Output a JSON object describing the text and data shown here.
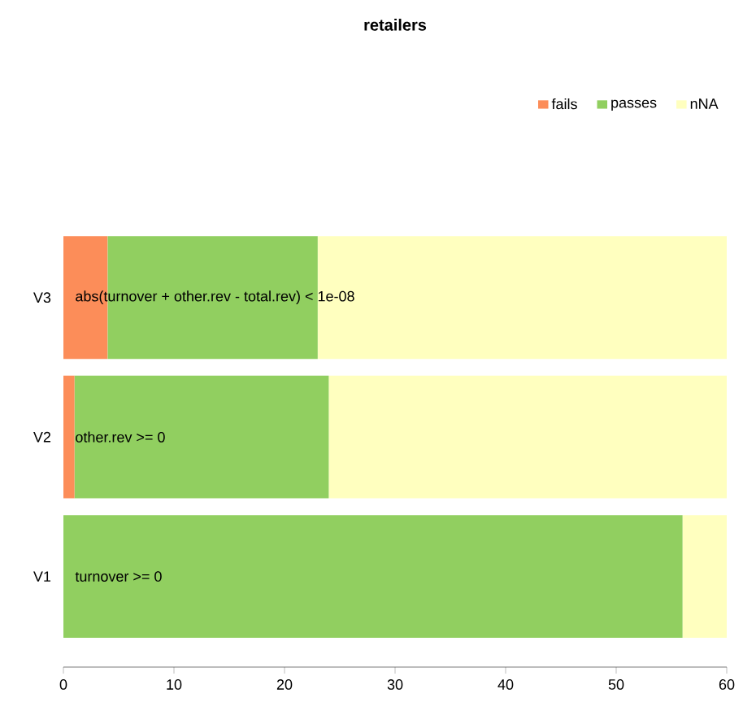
{
  "chart_data": {
    "type": "bar",
    "orientation": "horizontal",
    "stacked": true,
    "title": "retailers",
    "categories": [
      "V3",
      "V2",
      "V1"
    ],
    "series": [
      {
        "name": "fails",
        "color": "#fc8d59",
        "values": [
          4,
          1,
          0
        ]
      },
      {
        "name": "passes",
        "color": "#91cf60",
        "values": [
          19,
          23,
          56
        ]
      },
      {
        "name": "nNA",
        "color": "#ffffbf",
        "values": [
          37,
          36,
          4
        ]
      }
    ],
    "xlim": [
      0,
      60
    ],
    "xticks": [
      0,
      10,
      20,
      30,
      40,
      50,
      60
    ],
    "legend": "top right",
    "grid": false,
    "annotations": [
      "abs(turnover + other.rev - total.rev) < 1e-08",
      "other.rev >= 0",
      "turnover >= 0"
    ]
  }
}
